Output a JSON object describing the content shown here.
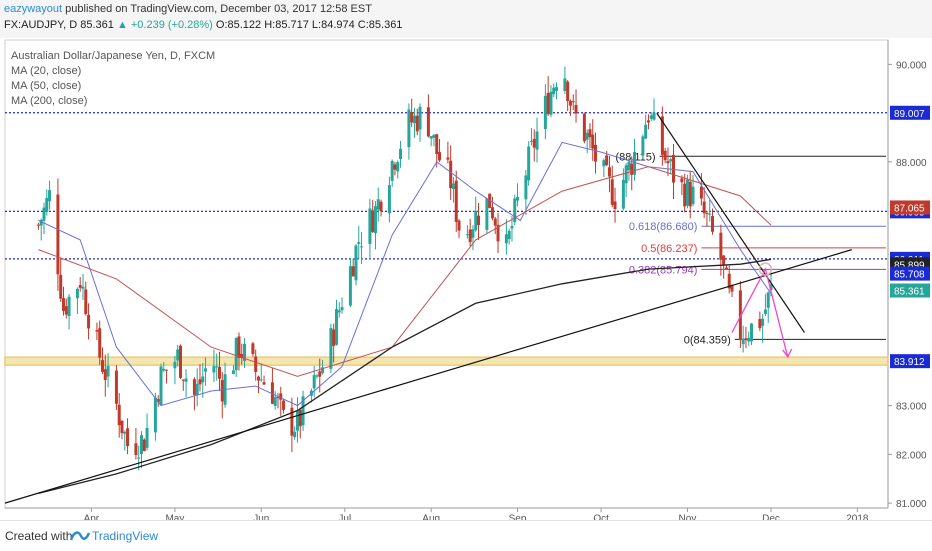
{
  "header": {
    "user": "eazywayout",
    "published": "published on TradingView.com, December 03, 2017 12:58 EST",
    "symbol": "FX:AUDJPY, D",
    "price": "85.361",
    "change": "▲ +0.239 (+0.28%)",
    "ohlc": "O:85.122 H:85.717 L:84.974 C:85.361"
  },
  "legend": {
    "title": "Australian Dollar/Japanese Yen, D, FXCM",
    "ma20": "MA (20, close)",
    "ma50": "MA (50, close)",
    "ma200": "MA (200, close)"
  },
  "footer": {
    "created": "Created with",
    "brand": "TradingView"
  },
  "chart_data": {
    "type": "candlestick",
    "title": "Australian Dollar/Japanese Yen, D, FXCM",
    "ylim": [
      80.9,
      90.5
    ],
    "y_ticks": [
      "90.000",
      "88.000",
      "83.000",
      "82.000",
      "81.000"
    ],
    "x_ticks": [
      "Apr",
      "May",
      "Jun",
      "Jul",
      "Aug",
      "Sep",
      "Oct",
      "Nov",
      "Dec",
      "2018"
    ],
    "colors": {
      "up": "#26a69a",
      "down": "#c0392b",
      "ma20": "#6670d8",
      "ma50": "#c45050",
      "ma200": "#222222",
      "fib": "#a9a9a9",
      "arrow": "#ee44cc",
      "support_zone": "#f0d98a"
    },
    "close_path": [
      [
        "Mar 13",
        86.7
      ],
      [
        "Mar 17",
        87.3
      ],
      [
        "Mar 22",
        85.0
      ],
      [
        "Mar 28",
        85.6
      ],
      [
        "Apr 3",
        84.2
      ],
      [
        "Apr 10",
        83.0
      ],
      [
        "Apr 14",
        82.2
      ],
      [
        "Apr 20",
        82.3
      ],
      [
        "Apr 26",
        83.6
      ],
      [
        "May 2",
        84.0
      ],
      [
        "May 8",
        83.2
      ],
      [
        "May 14",
        84.0
      ],
      [
        "May 18",
        83.4
      ],
      [
        "May 24",
        84.2
      ],
      [
        "May 30",
        83.7
      ],
      [
        "Jun 5",
        83.3
      ],
      [
        "Jun 9",
        82.7
      ],
      [
        "Jun 14",
        82.6
      ],
      [
        "Jun 20",
        83.4
      ],
      [
        "Jun 25",
        84.1
      ],
      [
        "Jun 30",
        85.2
      ],
      [
        "Jul 6",
        86.4
      ],
      [
        "Jul 12",
        87.0
      ],
      [
        "Jul 18",
        88.0
      ],
      [
        "Jul 24",
        88.8
      ],
      [
        "Jul 30",
        89.0
      ],
      [
        "Aug 3",
        88.2
      ],
      [
        "Aug 8",
        87.6
      ],
      [
        "Aug 12",
        86.4
      ],
      [
        "Aug 17",
        86.9
      ],
      [
        "Aug 22",
        87.2
      ],
      [
        "Aug 28",
        86.2
      ],
      [
        "Sep 2",
        87.4
      ],
      [
        "Sep 7",
        88.4
      ],
      [
        "Sep 12",
        89.3
      ],
      [
        "Sep 17",
        90.1
      ],
      [
        "Sep 21",
        89.0
      ],
      [
        "Sep 26",
        88.5
      ],
      [
        "Oct 1",
        87.8
      ],
      [
        "Oct 6",
        87.3
      ],
      [
        "Oct 12",
        88.0
      ],
      [
        "Oct 18",
        89.0
      ],
      [
        "Oct 23",
        88.2
      ],
      [
        "Oct 29",
        87.5
      ],
      [
        "Nov 3",
        87.3
      ],
      [
        "Nov 8",
        86.8
      ],
      [
        "Nov 13",
        86.0
      ],
      [
        "Nov 16",
        85.2
      ],
      [
        "Nov 20",
        84.5
      ],
      [
        "Nov 24",
        84.6
      ],
      [
        "Nov 28",
        84.8
      ],
      [
        "Dec 1",
        85.361
      ]
    ],
    "ma20": [
      [
        "Mar 13",
        86.8
      ],
      [
        "Mar 28",
        86.4
      ],
      [
        "Apr 10",
        84.2
      ],
      [
        "Apr 26",
        83.0
      ],
      [
        "May 14",
        83.3
      ],
      [
        "May 30",
        83.4
      ],
      [
        "Jun 14",
        83.0
      ],
      [
        "Jun 30",
        83.8
      ],
      [
        "Jul 18",
        86.5
      ],
      [
        "Aug 3",
        88.0
      ],
      [
        "Aug 17",
        87.4
      ],
      [
        "Sep 2",
        86.8
      ],
      [
        "Sep 17",
        88.4
      ],
      [
        "Oct 1",
        88.2
      ],
      [
        "Oct 18",
        87.9
      ],
      [
        "Nov 3",
        87.8
      ],
      [
        "Nov 20",
        86.2
      ],
      [
        "Dec 1",
        85.3
      ]
    ],
    "ma50": [
      [
        "Mar 13",
        86.2
      ],
      [
        "Apr 10",
        85.6
      ],
      [
        "May 14",
        84.2
      ],
      [
        "Jun 14",
        83.6
      ],
      [
        "Jul 18",
        84.2
      ],
      [
        "Aug 17",
        86.4
      ],
      [
        "Sep 17",
        87.4
      ],
      [
        "Oct 18",
        87.9
      ],
      [
        "Nov 20",
        87.3
      ],
      [
        "Dec 1",
        86.7
      ]
    ],
    "ma200": [
      [
        "Mar 13",
        81.2
      ],
      [
        "Apr 10",
        81.6
      ],
      [
        "May 14",
        82.2
      ],
      [
        "Jun 14",
        82.9
      ],
      [
        "Jul 18",
        84.2
      ],
      [
        "Aug 17",
        85.1
      ],
      [
        "Sep 17",
        85.5
      ],
      [
        "Oct 18",
        85.8
      ],
      [
        "Nov 20",
        85.9
      ],
      [
        "Dec 1",
        86.0
      ]
    ],
    "levels": [
      {
        "label": "89.007",
        "value": 89.007,
        "style": "dotted",
        "color": "#1a2bd6",
        "box": "#1a2bd6"
      },
      {
        "label": "86.985",
        "value": 86.985,
        "style": "dotted",
        "color": "#1a2bd6",
        "box": "#1a2bd6"
      },
      {
        "label": "86.011",
        "value": 86.011,
        "style": "dotted",
        "color": "#1a2bd6",
        "box": "#1a2bd6"
      },
      {
        "label": "83.912",
        "value": 83.912,
        "style": "zone",
        "color": "#e8c96a",
        "box": "#1a2bd6"
      }
    ],
    "price_labels": [
      {
        "label": "87.065",
        "value": 87.065,
        "box": "#c0392b"
      },
      {
        "label": "85.899",
        "value": 85.899,
        "box": "#222222"
      },
      {
        "label": "85.708",
        "value": 85.708,
        "box": "#1a2bd6"
      },
      {
        "label": "85.361",
        "value": 85.361,
        "box": "#26a69a"
      }
    ],
    "fib": [
      {
        "label": "(88.115)",
        "value": 88.115,
        "color": "#222222"
      },
      {
        "label": "0.618(86.680)",
        "value": 86.68,
        "color": "#6670d8"
      },
      {
        "label": "0.5(86.237)",
        "value": 86.237,
        "color": "#e03b3b"
      },
      {
        "label": "0.382(85.794)",
        "value": 85.794,
        "color": "#9b3bbf"
      },
      {
        "label": "0(84.359)",
        "value": 84.359,
        "color": "#222222"
      }
    ],
    "trendlines": [
      {
        "from": [
          "Mar 1",
          81.0
        ],
        "to": [
          "Dec 30",
          86.2
        ]
      },
      {
        "from": [
          "Oct 21",
          89.0
        ],
        "to": [
          "Dec 13",
          84.5
        ]
      }
    ],
    "projection": [
      [
        "Nov 17",
        84.5
      ],
      [
        "Nov 29",
        85.8
      ],
      [
        "Dec 7",
        84.0
      ]
    ]
  }
}
